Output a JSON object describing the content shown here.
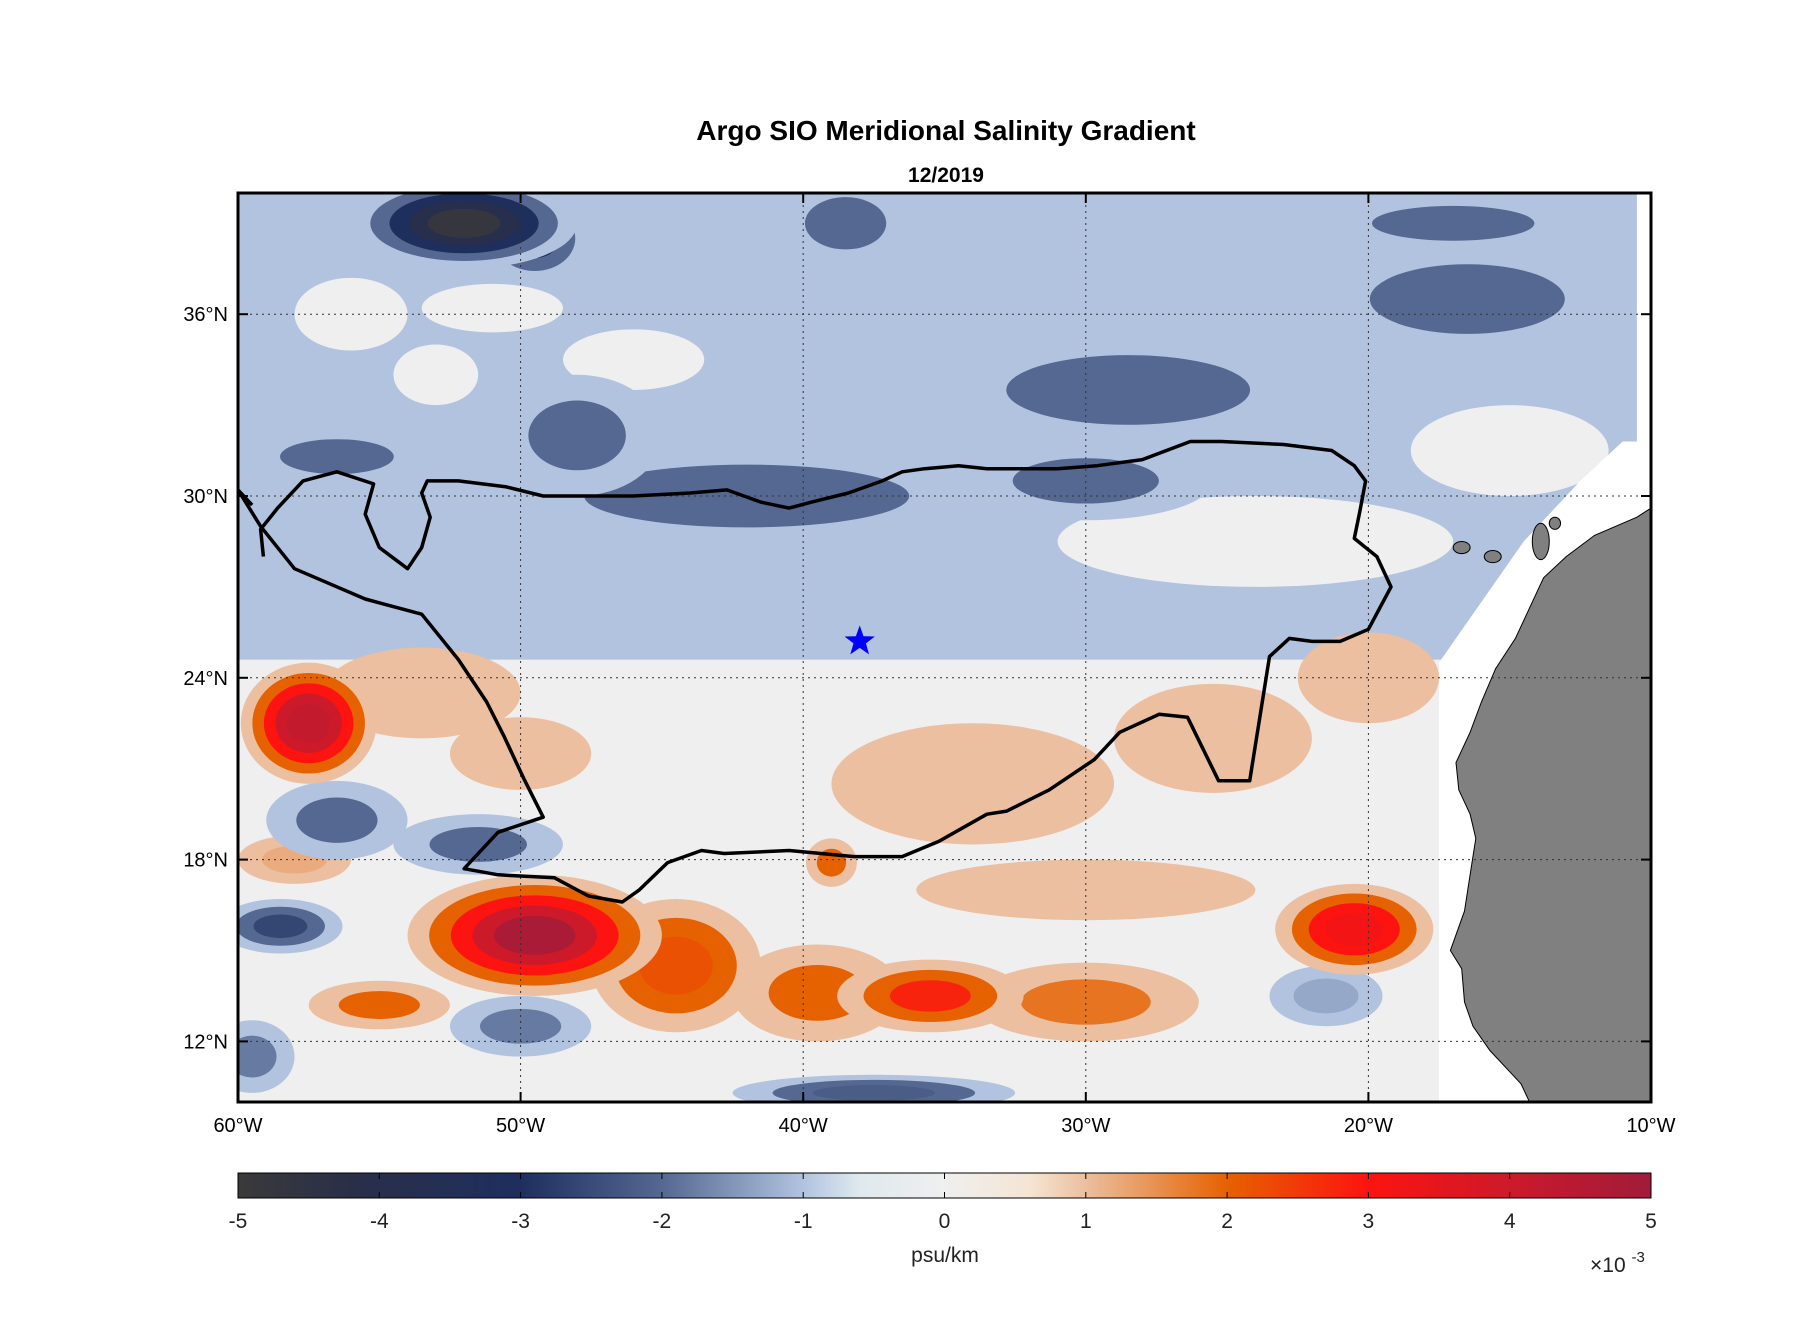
{
  "chart_data": {
    "type": "heatmap",
    "title": "Argo SIO Meridional Salinity Gradient",
    "subtitle": "12/2019",
    "x_ticks": [
      -60,
      -50,
      -40,
      -30,
      -20,
      -10
    ],
    "x_tick_labels": [
      "60°W",
      "50°W",
      "40°W",
      "30°W",
      "20°W",
      "10°W"
    ],
    "y_ticks": [
      12,
      18,
      24,
      30,
      36
    ],
    "y_tick_labels": [
      "12°N",
      "18°N",
      "24°N",
      "30°N",
      "36°N"
    ],
    "xlim": [
      -60,
      -10
    ],
    "ylim": [
      10,
      40
    ],
    "grid": true,
    "colorbar": {
      "label": "psu/km",
      "multiplier": "×10-3",
      "multiplier_base": "×10",
      "multiplier_exp": "-3",
      "ticks": [
        -5,
        -4,
        -3,
        -2,
        -1,
        0,
        1,
        2,
        3,
        4,
        5
      ],
      "tick_labels": [
        "-5",
        "-4",
        "-3",
        "-2",
        "-1",
        "0",
        "1",
        "2",
        "3",
        "4",
        "5"
      ],
      "range": [
        -5,
        5
      ],
      "stops": [
        {
          "value": -5,
          "color": "#3a3a3a"
        },
        {
          "value": -4.2,
          "color": "#2a2f48"
        },
        {
          "value": -3,
          "color": "#1e2f5e"
        },
        {
          "value": -2,
          "color": "#546891"
        },
        {
          "value": -1,
          "color": "#b1c3df"
        },
        {
          "value": -0.6,
          "color": "#dfe9ee"
        },
        {
          "value": 0,
          "color": "#efefef"
        },
        {
          "value": 0.6,
          "color": "#f5e5d3"
        },
        {
          "value": 1,
          "color": "#ebbf9f"
        },
        {
          "value": 2,
          "color": "#e66100"
        },
        {
          "value": 3,
          "color": "#fd1310"
        },
        {
          "value": 4,
          "color": "#cc1a2a"
        },
        {
          "value": 5,
          "color": "#a11b3a"
        }
      ]
    },
    "colors": {
      "land": "#808080",
      "no_data": "#ffffff",
      "contour_line": "#000000",
      "marker": "#0000ff"
    },
    "marker": {
      "shape": "star",
      "lon": -38,
      "lat": 25.2
    },
    "contour_line_lonlat": [
      [
        -59.5,
        29.7
      ],
      [
        -60,
        30.2
      ],
      [
        -59.2,
        29.0
      ],
      [
        -58,
        27.6
      ],
      [
        -57,
        27.2
      ],
      [
        -55.5,
        26.6
      ],
      [
        -53.5,
        26.1
      ],
      [
        -52.2,
        24.6
      ],
      [
        -51.2,
        23.2
      ],
      [
        -50.6,
        22.1
      ],
      [
        -49.9,
        20.7
      ],
      [
        -49.2,
        19.4
      ],
      [
        -50.8,
        18.9
      ],
      [
        -52,
        17.7
      ],
      [
        -50.8,
        17.5
      ],
      [
        -48.8,
        17.4
      ],
      [
        -47.6,
        16.8
      ],
      [
        -46.4,
        16.6
      ],
      [
        -45.8,
        17.0
      ],
      [
        -44.8,
        17.9
      ],
      [
        -43.6,
        18.3
      ],
      [
        -42.8,
        18.2
      ],
      [
        -40.5,
        18.3
      ],
      [
        -38.2,
        18.1
      ],
      [
        -36.5,
        18.1
      ],
      [
        -35.2,
        18.6
      ],
      [
        -33.5,
        19.5
      ],
      [
        -32.8,
        19.6
      ],
      [
        -31.3,
        20.3
      ],
      [
        -29.7,
        21.3
      ],
      [
        -28.8,
        22.2
      ],
      [
        -27.4,
        22.8
      ],
      [
        -26.4,
        22.7
      ],
      [
        -25.3,
        20.6
      ],
      [
        -24.2,
        20.6
      ],
      [
        -23.5,
        24.7
      ],
      [
        -22.8,
        25.3
      ],
      [
        -22,
        25.2
      ],
      [
        -21.0,
        25.2
      ],
      [
        -20.0,
        25.6
      ],
      [
        -19.2,
        27.0
      ],
      [
        -19.7,
        28.0
      ],
      [
        -20.5,
        28.6
      ],
      [
        -20.3,
        29.5
      ],
      [
        -20.1,
        30.5
      ],
      [
        -20.5,
        31.0
      ],
      [
        -21.3,
        31.5
      ],
      [
        -23,
        31.7
      ],
      [
        -25.2,
        31.8
      ],
      [
        -26.3,
        31.8
      ],
      [
        -28,
        31.2
      ],
      [
        -29.6,
        31.0
      ],
      [
        -31,
        30.9
      ],
      [
        -32.5,
        30.9
      ],
      [
        -33.5,
        30.9
      ],
      [
        -34.5,
        31.0
      ],
      [
        -35.7,
        30.9
      ],
      [
        -36.5,
        30.8
      ],
      [
        -37.2,
        30.5
      ],
      [
        -38.4,
        30.1
      ],
      [
        -39.7,
        29.8
      ],
      [
        -40.5,
        29.6
      ],
      [
        -41.5,
        29.8
      ],
      [
        -42.7,
        30.2
      ],
      [
        -44,
        30.1
      ],
      [
        -46,
        30.0
      ],
      [
        -48,
        30.0
      ],
      [
        -49.2,
        30.0
      ],
      [
        -50.5,
        30.3
      ],
      [
        -52.2,
        30.5
      ],
      [
        -53.3,
        30.5
      ],
      [
        -53.5,
        30.1
      ],
      [
        -53.2,
        29.3
      ],
      [
        -53.5,
        28.3
      ],
      [
        -54,
        27.6
      ],
      [
        -55,
        28.3
      ],
      [
        -55.5,
        29.4
      ],
      [
        -55.2,
        30.4
      ],
      [
        -56.5,
        30.8
      ],
      [
        -57.7,
        30.5
      ],
      [
        -58.6,
        29.6
      ],
      [
        -59.2,
        28.9
      ],
      [
        -59.1,
        28.0
      ]
    ],
    "field_blobs": [
      {
        "lon": -57.5,
        "lat": 22.5,
        "rx": 2.4,
        "ry": 2.0,
        "value": 4.2
      },
      {
        "lon": -49.5,
        "lat": 15.5,
        "rx": 4.5,
        "ry": 2.0,
        "value": 4.8
      },
      {
        "lon": -44.5,
        "lat": 14.5,
        "rx": 3.0,
        "ry": 2.2,
        "value": 2.2
      },
      {
        "lon": -39.5,
        "lat": 13.6,
        "rx": 3.0,
        "ry": 1.6,
        "value": 2.0
      },
      {
        "lon": -35.5,
        "lat": 13.5,
        "rx": 3.3,
        "ry": 1.2,
        "value": 2.8
      },
      {
        "lon": -30.0,
        "lat": 13.3,
        "rx": 4.0,
        "ry": 1.3,
        "value": 1.8
      },
      {
        "lon": -55.0,
        "lat": 13.2,
        "rx": 2.5,
        "ry": 0.8,
        "value": 2.0
      },
      {
        "lon": -20.5,
        "lat": 15.7,
        "rx": 2.8,
        "ry": 1.5,
        "value": 3.2
      },
      {
        "lon": -39.0,
        "lat": 17.9,
        "rx": 0.9,
        "ry": 0.8,
        "value": 2.0
      },
      {
        "lon": -34.0,
        "lat": 20.5,
        "rx": 5.0,
        "ry": 2.0,
        "value": 1.0
      },
      {
        "lon": -25.5,
        "lat": 22.0,
        "rx": 3.5,
        "ry": 1.8,
        "value": 1.0
      },
      {
        "lon": -20.0,
        "lat": 24.0,
        "rx": 2.5,
        "ry": 1.5,
        "value": 1.0
      },
      {
        "lon": -53.5,
        "lat": 23.5,
        "rx": 3.5,
        "ry": 1.5,
        "value": 1.0
      },
      {
        "lon": -50.0,
        "lat": 21.5,
        "rx": 2.5,
        "ry": 1.2,
        "value": 1.0
      },
      {
        "lon": -30.0,
        "lat": 17.0,
        "rx": 6.0,
        "ry": 1.0,
        "value": 1.0
      },
      {
        "lon": -58.0,
        "lat": 18.0,
        "rx": 2.0,
        "ry": 0.8,
        "value": 1.2
      },
      {
        "lon": -56.5,
        "lat": 19.3,
        "rx": 2.5,
        "ry": 1.3,
        "value": -2.0
      },
      {
        "lon": -51.5,
        "lat": 18.5,
        "rx": 3.0,
        "ry": 1.0,
        "value": -2.0
      },
      {
        "lon": -58.5,
        "lat": 15.8,
        "rx": 2.2,
        "ry": 0.9,
        "value": -2.6
      },
      {
        "lon": -50.0,
        "lat": 12.5,
        "rx": 2.5,
        "ry": 1.0,
        "value": -1.8
      },
      {
        "lon": -21.5,
        "lat": 13.5,
        "rx": 2.0,
        "ry": 1.0,
        "value": -1.3
      },
      {
        "lon": -37.5,
        "lat": 10.3,
        "rx": 5.0,
        "ry": 0.6,
        "value": -2.2
      },
      {
        "lon": -59.5,
        "lat": 11.5,
        "rx": 1.5,
        "ry": 1.2,
        "value": -1.8
      },
      {
        "lon": -42.0,
        "lat": 30.0,
        "rx": 10.0,
        "ry": 1.8,
        "value": -2.0
      },
      {
        "lon": -48.0,
        "lat": 32.0,
        "rx": 3.0,
        "ry": 2.0,
        "value": -2.0
      },
      {
        "lon": -28.5,
        "lat": 33.5,
        "rx": 7.5,
        "ry": 2.0,
        "value": -2.0
      },
      {
        "lon": -30.0,
        "lat": 30.5,
        "rx": 4.5,
        "ry": 1.3,
        "value": -2.0
      },
      {
        "lon": -16.5,
        "lat": 36.5,
        "rx": 6.0,
        "ry": 2.0,
        "value": -2.0
      },
      {
        "lon": -17.0,
        "lat": 39.0,
        "rx": 5.0,
        "ry": 1.0,
        "value": -2.0
      },
      {
        "lon": -38.5,
        "lat": 39.0,
        "rx": 2.5,
        "ry": 1.5,
        "value": -2.0
      },
      {
        "lon": -56.5,
        "lat": 31.3,
        "rx": 3.5,
        "ry": 1.0,
        "value": -2.0
      },
      {
        "lon": -52.0,
        "lat": 39.0,
        "rx": 4.0,
        "ry": 1.5,
        "value": -4.8
      },
      {
        "lon": -49.5,
        "lat": 38.5,
        "rx": 2.0,
        "ry": 1.5,
        "value": -3.0
      },
      {
        "lon": -56.0,
        "lat": 36.0,
        "rx": 2.0,
        "ry": 1.2,
        "value": 0.0
      },
      {
        "lon": -53.0,
        "lat": 34.0,
        "rx": 1.5,
        "ry": 1.0,
        "value": 0.0
      },
      {
        "lon": -46.0,
        "lat": 34.5,
        "rx": 2.5,
        "ry": 1.0,
        "value": 0.0
      },
      {
        "lon": -51.0,
        "lat": 36.2,
        "rx": 2.5,
        "ry": 0.8,
        "value": 0.0
      },
      {
        "lon": -15.0,
        "lat": 31.5,
        "rx": 3.5,
        "ry": 1.5,
        "value": 0.0
      },
      {
        "lon": -24.0,
        "lat": 28.5,
        "rx": 7.0,
        "ry": 1.5,
        "value": 0.0
      }
    ],
    "land_polygon_lonlat": [
      [
        -10,
        29.6
      ],
      [
        -10.5,
        29.3
      ],
      [
        -12,
        28.7
      ],
      [
        -13,
        28.0
      ],
      [
        -13.8,
        27.3
      ],
      [
        -14.3,
        26.3
      ],
      [
        -14.8,
        25.3
      ],
      [
        -15.5,
        24.3
      ],
      [
        -16.0,
        23.2
      ],
      [
        -16.4,
        22.2
      ],
      [
        -16.9,
        21.2
      ],
      [
        -16.8,
        20.3
      ],
      [
        -16.4,
        19.5
      ],
      [
        -16.2,
        18.7
      ],
      [
        -16.4,
        17.5
      ],
      [
        -16.6,
        16.3
      ],
      [
        -17.1,
        15.0
      ],
      [
        -16.7,
        14.4
      ],
      [
        -16.6,
        13.3
      ],
      [
        -16.3,
        12.5
      ],
      [
        -15.7,
        11.7
      ],
      [
        -15.0,
        11.0
      ],
      [
        -14.6,
        10.6
      ],
      [
        -14.3,
        10.0
      ],
      [
        -10,
        10.0
      ]
    ],
    "no_data_polygon_lonlat": [
      [
        -17.5,
        10.0
      ],
      [
        -17.5,
        24.5
      ],
      [
        -16.0,
        26.5
      ],
      [
        -14.5,
        28.5
      ],
      [
        -12.5,
        30.5
      ],
      [
        -11.0,
        31.8
      ],
      [
        -10.5,
        31.8
      ],
      [
        -10.5,
        40.0
      ],
      [
        -10.0,
        40.0
      ],
      [
        -10.0,
        10.0
      ]
    ],
    "islands_lonlat": [
      {
        "lon": -16.7,
        "lat": 28.3,
        "rx": 0.3,
        "ry": 0.2
      },
      {
        "lon": -15.6,
        "lat": 28.0,
        "rx": 0.3,
        "ry": 0.2
      },
      {
        "lon": -13.9,
        "lat": 28.5,
        "rx": 0.3,
        "ry": 0.6
      },
      {
        "lon": -13.4,
        "lat": 29.1,
        "rx": 0.2,
        "ry": 0.2
      }
    ]
  }
}
